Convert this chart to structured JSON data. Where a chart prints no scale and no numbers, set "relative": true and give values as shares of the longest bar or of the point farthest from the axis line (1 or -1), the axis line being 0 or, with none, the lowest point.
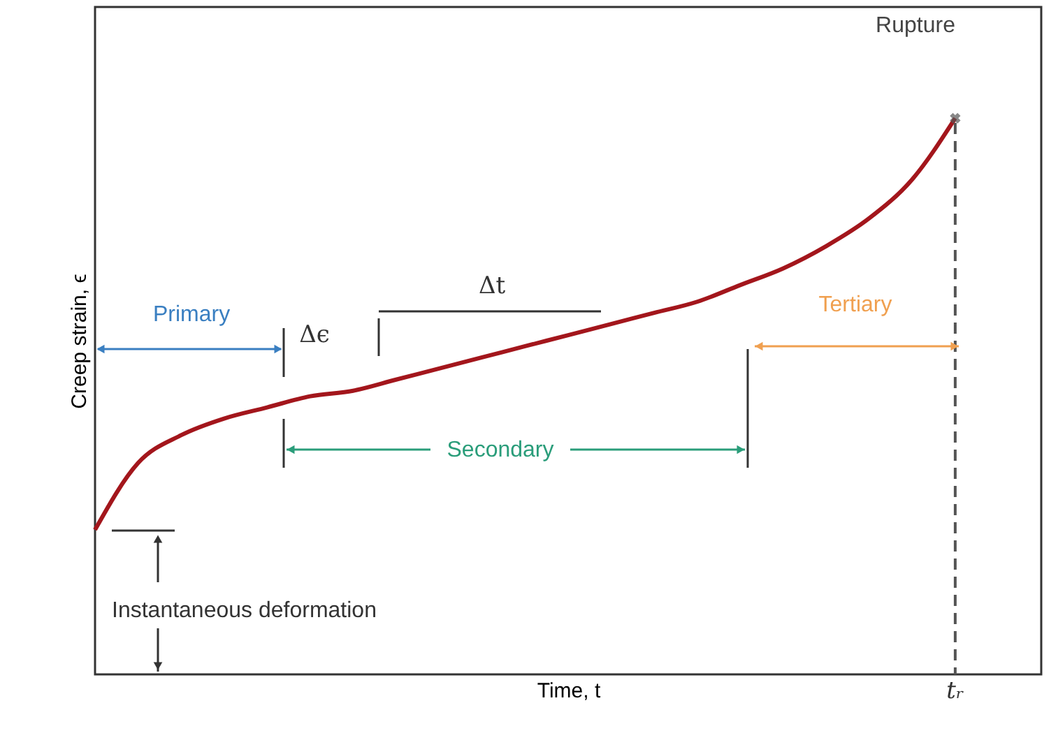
{
  "chart_data": {
    "type": "line",
    "relative": true,
    "xlabel": "Time, t",
    "ylabel": "Creep strain, ϵ",
    "categories": [
      null,
      null,
      null,
      null,
      null,
      null,
      null,
      null,
      null,
      null,
      null,
      null,
      null,
      null,
      null,
      null,
      null,
      null,
      null,
      null,
      null,
      null,
      null
    ],
    "series": [
      {
        "color": "#a3161c",
        "values": [
          0.26,
          0.38,
          0.43,
          0.46,
          0.48,
          0.5,
          0.51,
          0.53,
          0.55,
          0.57,
          0.59,
          0.61,
          0.63,
          0.65,
          0.67,
          0.7,
          0.73,
          0.77,
          0.82,
          0.89,
          1,
          null,
          null
        ]
      }
    ],
    "annotations": [
      "Rupture",
      "Primary",
      "Δt",
      "Δϵ",
      "Secondary",
      "Tertiary",
      "Instantaneous deformation"
    ],
    "ref_lines": [
      {
        "axis": "x",
        "label": "tᵣ",
        "color": "#555555",
        "line_style": "dashed"
      }
    ],
    "grid": false,
    "marker": "none",
    "line_style": "solid"
  }
}
